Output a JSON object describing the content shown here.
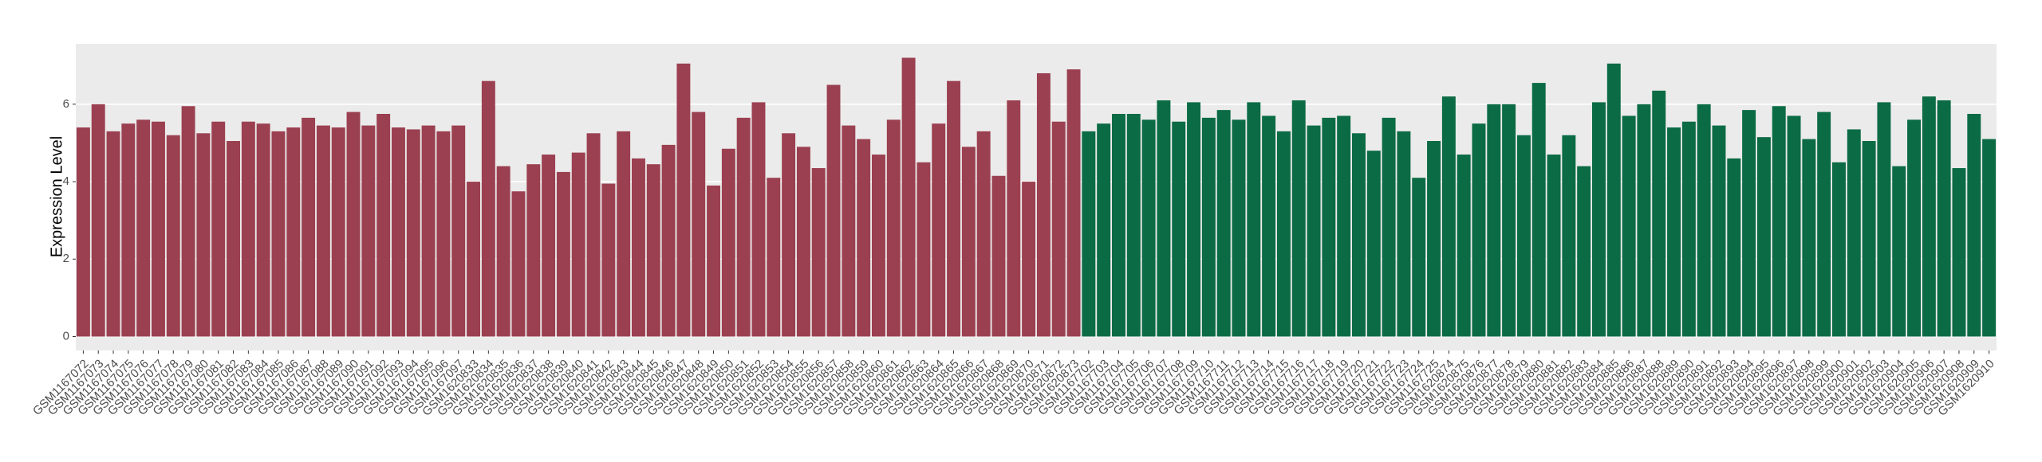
{
  "chart_data": {
    "type": "bar",
    "y_label": "Expression Level",
    "categories": [
      "GSM1167072",
      "GSM1167073",
      "GSM1167074",
      "GSM1167075",
      "GSM1167076",
      "GSM1167077",
      "GSM1167078",
      "GSM1167079",
      "GSM1167080",
      "GSM1167081",
      "GSM1167082",
      "GSM1167083",
      "GSM1167084",
      "GSM1167085",
      "GSM1167086",
      "GSM1167087",
      "GSM1167088",
      "GSM1167089",
      "GSM1167090",
      "GSM1167091",
      "GSM1167092",
      "GSM1167093",
      "GSM1167094",
      "GSM1167095",
      "GSM1167096",
      "GSM1167097",
      "GSM1620833",
      "GSM1620834",
      "GSM1620835",
      "GSM1620836",
      "GSM1620837",
      "GSM1620838",
      "GSM1620839",
      "GSM1620840",
      "GSM1620841",
      "GSM1620842",
      "GSM1620843",
      "GSM1620844",
      "GSM1620845",
      "GSM1620846",
      "GSM1620847",
      "GSM1620848",
      "GSM1620849",
      "GSM1620850",
      "GSM1620851",
      "GSM1620852",
      "GSM1620853",
      "GSM1620854",
      "GSM1620855",
      "GSM1620856",
      "GSM1620857",
      "GSM1620858",
      "GSM1620859",
      "GSM1620860",
      "GSM1620861",
      "GSM1620862",
      "GSM1620863",
      "GSM1620864",
      "GSM1620865",
      "GSM1620866",
      "GSM1620867",
      "GSM1620868",
      "GSM1620869",
      "GSM1620870",
      "GSM1620871",
      "GSM1620872",
      "GSM1620873",
      "GSM1167702",
      "GSM1167703",
      "GSM1167704",
      "GSM1167705",
      "GSM1167706",
      "GSM1167707",
      "GSM1167708",
      "GSM1167709",
      "GSM1167710",
      "GSM1167711",
      "GSM1167712",
      "GSM1167713",
      "GSM1167714",
      "GSM1167715",
      "GSM1167716",
      "GSM1167717",
      "GSM1167718",
      "GSM1167719",
      "GSM1167720",
      "GSM1167721",
      "GSM1167722",
      "GSM1167723",
      "GSM1167724",
      "GSM1167725",
      "GSM1620874",
      "GSM1620875",
      "GSM1620876",
      "GSM1620877",
      "GSM1620878",
      "GSM1620879",
      "GSM1620880",
      "GSM1620881",
      "GSM1620882",
      "GSM1620883",
      "GSM1620884",
      "GSM1620885",
      "GSM1620886",
      "GSM1620887",
      "GSM1620888",
      "GSM1620889",
      "GSM1620890",
      "GSM1620891",
      "GSM1620892",
      "GSM1620893",
      "GSM1620894",
      "GSM1620895",
      "GSM1620896",
      "GSM1620897",
      "GSM1620898",
      "GSM1620899",
      "GSM1620900",
      "GSM1620901",
      "GSM1620902",
      "GSM1620903",
      "GSM1620904",
      "GSM1620905",
      "GSM1620906",
      "GSM1620907",
      "GSM1620908",
      "GSM1620909",
      "GSM1620910"
    ],
    "series": [
      {
        "color": "#9b4050",
        "values": [
          5.4,
          6.0,
          5.3,
          5.5,
          5.6,
          5.55,
          5.2,
          5.95,
          5.25,
          5.55,
          5.05,
          5.55,
          5.5,
          5.3,
          5.4,
          5.65,
          5.45,
          5.4,
          5.8,
          5.45,
          5.75,
          5.4,
          5.35,
          5.45,
          5.3,
          5.45,
          4.0,
          6.6,
          4.4,
          3.75,
          4.45,
          4.7,
          4.25,
          4.75,
          5.25,
          3.95,
          5.3,
          4.6,
          4.45,
          4.95,
          7.05,
          5.8,
          3.9,
          4.85,
          5.65,
          6.05,
          4.1,
          5.25,
          4.9,
          4.35,
          6.5,
          5.45,
          5.1,
          4.7,
          5.6,
          7.2,
          4.5,
          5.5,
          6.6,
          4.9,
          5.3,
          4.15,
          6.1,
          4.0,
          6.8,
          5.55,
          6.9,
          null,
          null,
          null,
          null,
          null,
          null,
          null,
          null,
          null,
          null,
          null,
          null,
          null,
          null,
          null,
          null,
          null,
          null,
          null,
          null,
          null,
          null,
          null,
          null,
          null,
          null,
          null,
          null,
          null,
          null,
          null,
          null,
          null,
          null,
          null,
          null,
          null,
          null,
          null,
          null,
          null,
          null,
          null,
          null,
          null,
          null,
          null,
          null,
          null,
          null,
          null,
          null,
          null,
          null,
          null,
          null,
          null,
          null,
          null,
          null,
          null
        ]
      },
      {
        "color": "#0b6b45",
        "values": [
          null,
          null,
          null,
          null,
          null,
          null,
          null,
          null,
          null,
          null,
          null,
          null,
          null,
          null,
          null,
          null,
          null,
          null,
          null,
          null,
          null,
          null,
          null,
          null,
          null,
          null,
          null,
          null,
          null,
          null,
          null,
          null,
          null,
          null,
          null,
          null,
          null,
          null,
          null,
          null,
          null,
          null,
          null,
          null,
          null,
          null,
          null,
          null,
          null,
          null,
          null,
          null,
          null,
          null,
          null,
          null,
          null,
          null,
          null,
          null,
          null,
          null,
          null,
          null,
          null,
          null,
          null,
          5.3,
          5.5,
          5.75,
          5.75,
          5.6,
          6.1,
          5.55,
          6.05,
          5.65,
          5.85,
          5.6,
          6.05,
          5.7,
          5.3,
          6.1,
          5.45,
          5.65,
          5.7,
          5.25,
          4.8,
          5.65,
          5.3,
          4.1,
          5.05,
          6.2,
          4.7,
          5.5,
          6.0,
          6.0,
          5.2,
          6.55,
          4.7,
          5.2,
          4.4,
          6.05,
          7.05,
          5.7,
          6.0,
          6.35,
          5.4,
          5.55,
          6.0,
          5.45,
          4.6,
          5.85,
          5.15,
          5.95,
          5.7,
          5.1,
          5.8,
          4.5,
          5.35,
          5.05,
          6.05,
          4.4,
          5.6,
          6.2,
          6.1,
          4.35,
          5.75,
          5.1
        ]
      }
    ],
    "ylim": [
      -0.36,
      7.56
    ],
    "yticks": [
      0,
      2,
      4,
      6
    ],
    "grid": true
  }
}
